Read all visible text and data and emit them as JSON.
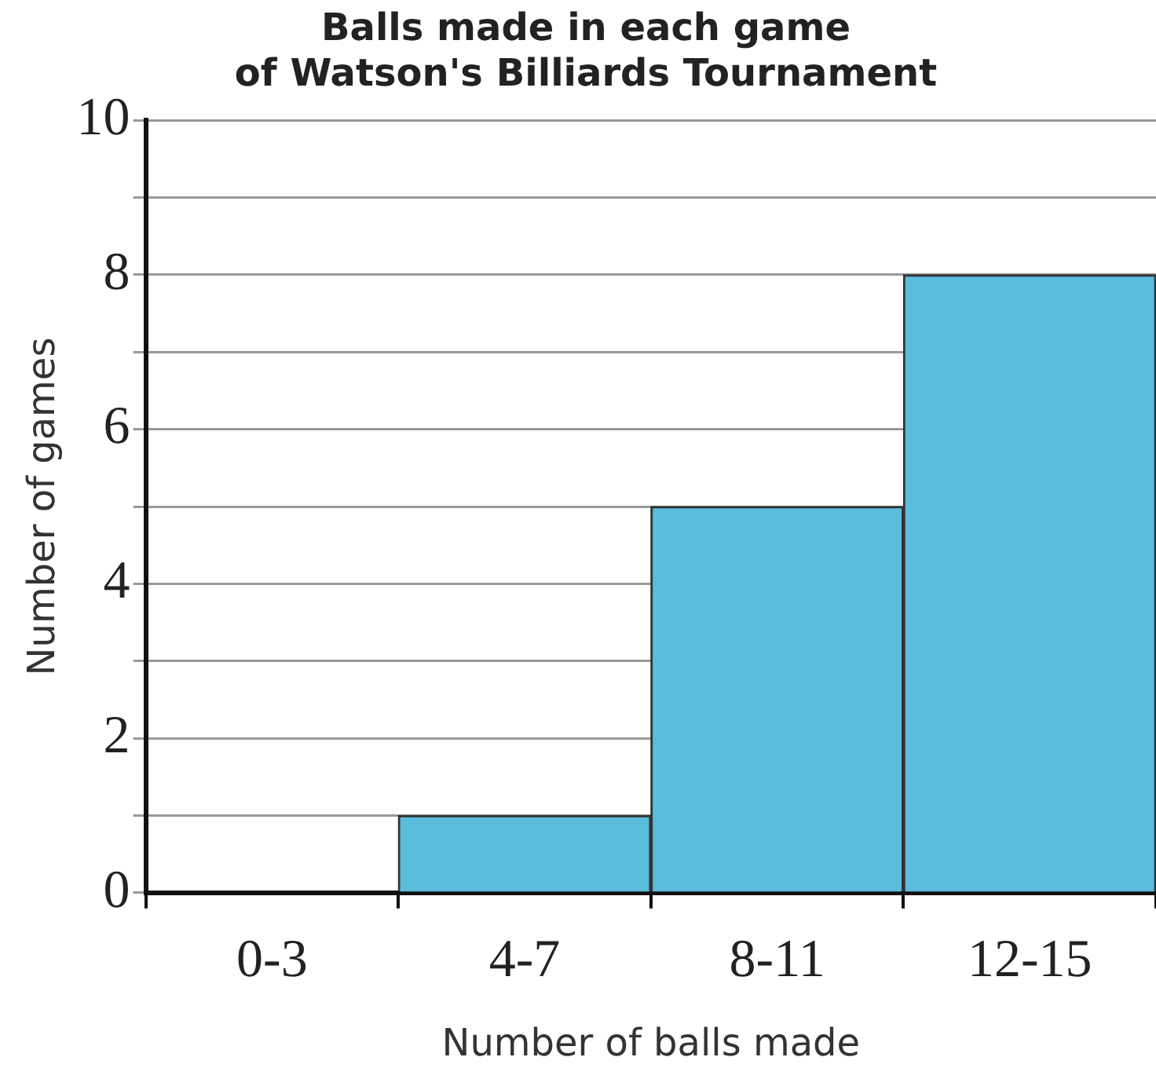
{
  "chart_data": {
    "type": "bar",
    "title": "Balls made in each game\nof Watson's Billiards Tournament",
    "xlabel": "Number of balls made",
    "ylabel": "Number of games",
    "categories": [
      "0-3",
      "4-7",
      "8-11",
      "12-15"
    ],
    "values": [
      0,
      1,
      5,
      8
    ],
    "color": "#5bbcdb",
    "ylim": [
      0,
      10
    ],
    "yticks": [
      0,
      {
        "value": 1,
        "label": null
      },
      2,
      {
        "value": 3,
        "label": null
      },
      4,
      {
        "value": 5,
        "label": null
      },
      6,
      {
        "value": 7,
        "label": null
      },
      8,
      {
        "value": 9,
        "label": null
      },
      10
    ],
    "grid": "y",
    "legend": false
  }
}
